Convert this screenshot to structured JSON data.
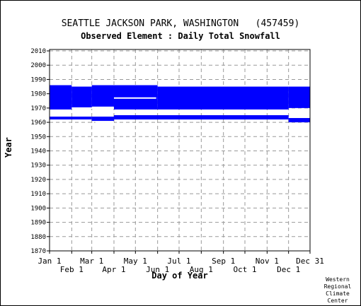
{
  "chart_data": {
    "type": "bar",
    "title": "SEATTLE JACKSON PARK, WASHINGTON   (457459)",
    "subtitle": "Observed Element : Daily Total Snowfall",
    "xlabel": "Day of Year",
    "ylabel": "Year",
    "credit": [
      "Western",
      "Regional",
      "Climate",
      "Center"
    ],
    "xlim": [
      1,
      365
    ],
    "ylim": [
      1870,
      2011
    ],
    "grid": true,
    "legend": "none",
    "colors": {
      "data": "#0000ff",
      "grid": "#999999",
      "axis": "#000000"
    },
    "x_ticks_upper": [
      {
        "label": "Jan 1",
        "day": 1
      },
      {
        "label": "Mar 1",
        "day": 60
      },
      {
        "label": "May 1",
        "day": 121
      },
      {
        "label": "Jul 1",
        "day": 182
      },
      {
        "label": "Sep 1",
        "day": 244
      },
      {
        "label": "Nov 1",
        "day": 305
      },
      {
        "label": "Dec 31",
        "day": 365
      }
    ],
    "x_ticks_lower": [
      {
        "label": "Feb 1",
        "day": 32
      },
      {
        "label": "Apr 1",
        "day": 91
      },
      {
        "label": "Jun 1",
        "day": 152
      },
      {
        "label": "Aug 1",
        "day": 213
      },
      {
        "label": "Oct 1",
        "day": 274
      },
      {
        "label": "Dec 1",
        "day": 335
      }
    ],
    "y_ticks": [
      2010,
      2000,
      1990,
      1980,
      1970,
      1960,
      1950,
      1940,
      1930,
      1920,
      1910,
      1900,
      1890,
      1880,
      1870
    ],
    "series": [
      {
        "description": "periods with data available (day range x year range)",
        "segments": [
          {
            "day_start": 1,
            "day_end": 32,
            "year_start": 1969,
            "year_end": 1986
          },
          {
            "day_start": 32,
            "day_end": 60,
            "year_start": 1970,
            "year_end": 1985
          },
          {
            "day_start": 60,
            "day_end": 91,
            "year_start": 1971,
            "year_end": 1986
          },
          {
            "day_start": 91,
            "day_end": 152,
            "year_start": 1969,
            "year_end": 1986
          },
          {
            "day_start": 152,
            "day_end": 335,
            "year_start": 1969,
            "year_end": 1985
          },
          {
            "day_start": 335,
            "day_end": 365,
            "year_start": 1970,
            "year_end": 1985
          },
          {
            "day_start": 1,
            "day_end": 60,
            "year_start": 1962,
            "year_end": 1964
          },
          {
            "day_start": 60,
            "day_end": 91,
            "year_start": 1961,
            "year_end": 1964
          },
          {
            "day_start": 91,
            "day_end": 335,
            "year_start": 1962,
            "year_end": 1965
          },
          {
            "day_start": 335,
            "day_end": 365,
            "year_start": 1960,
            "year_end": 1963
          }
        ],
        "gaps": [
          {
            "day_start": 91,
            "day_end": 150,
            "year": 1977
          },
          {
            "day_start": 32,
            "day_end": 91,
            "year": 1970
          },
          {
            "day_start": 65,
            "day_end": 91,
            "year": 1960
          }
        ]
      }
    ]
  }
}
